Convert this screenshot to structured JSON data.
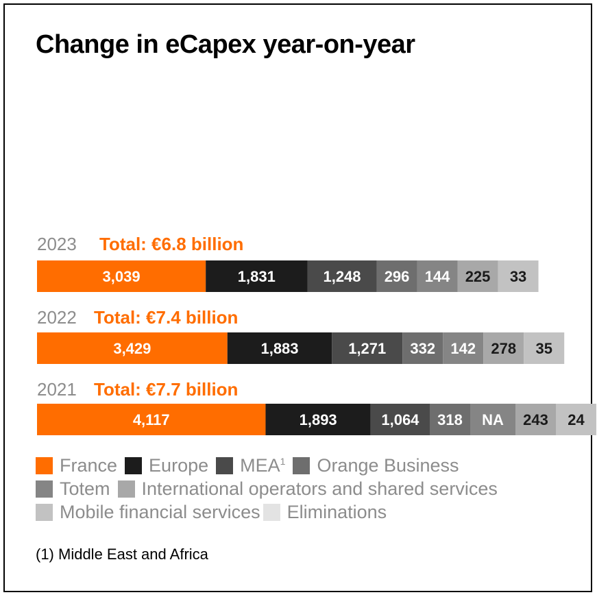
{
  "title": "Change in eCapex year-on-year",
  "chart_data": {
    "type": "bar",
    "orientation": "horizontal-stacked",
    "title": "Change in eCapex year-on-year",
    "rows": [
      {
        "year": "2023",
        "total_label": "Total: €6.8 billion",
        "segments": [
          {
            "series": "France",
            "value": 3039,
            "label": "3,039"
          },
          {
            "series": "Europe",
            "value": 1831,
            "label": "1,831"
          },
          {
            "series": "MEA",
            "value": 1248,
            "label": "1,248"
          },
          {
            "series": "Orange Business",
            "value": 296,
            "label": "296"
          },
          {
            "series": "Totem",
            "value": 144,
            "label": "144"
          },
          {
            "series": "International operators and shared services",
            "value": 225,
            "label": "225"
          },
          {
            "series": "Mobile financial services",
            "value": 33,
            "label": "33"
          }
        ]
      },
      {
        "year": "2022",
        "total_label": "Total: €7.4 billion",
        "segments": [
          {
            "series": "France",
            "value": 3429,
            "label": "3,429"
          },
          {
            "series": "Europe",
            "value": 1883,
            "label": "1,883"
          },
          {
            "series": "MEA",
            "value": 1271,
            "label": "1,271"
          },
          {
            "series": "Orange Business",
            "value": 332,
            "label": "332"
          },
          {
            "series": "Totem",
            "value": 142,
            "label": "142"
          },
          {
            "series": "International operators and shared services",
            "value": 278,
            "label": "278"
          },
          {
            "series": "Mobile financial services",
            "value": 35,
            "label": "35"
          }
        ]
      },
      {
        "year": "2021",
        "total_label": "Total: €7.7 billion",
        "segments": [
          {
            "series": "France",
            "value": 4117,
            "label": "4,117"
          },
          {
            "series": "Europe",
            "value": 1893,
            "label": "1,893"
          },
          {
            "series": "MEA",
            "value": 1064,
            "label": "1,064"
          },
          {
            "series": "Orange Business",
            "value": 318,
            "label": "318"
          },
          {
            "series": "Totem",
            "value": null,
            "label": "NA"
          },
          {
            "series": "International operators and shared services",
            "value": 243,
            "label": "243"
          },
          {
            "series": "Mobile financial services",
            "value": 24,
            "label": "24"
          }
        ]
      }
    ],
    "legend": [
      {
        "name": "France",
        "color": "#ff6d00",
        "superscript": ""
      },
      {
        "name": "Europe",
        "color": "#1c1c1c",
        "superscript": ""
      },
      {
        "name": "MEA",
        "color": "#4a4a4a",
        "superscript": "1"
      },
      {
        "name": "Orange Business",
        "color": "#6e6e6e",
        "superscript": ""
      },
      {
        "name": "Totem",
        "color": "#858585",
        "superscript": ""
      },
      {
        "name": "International operators and shared services",
        "color": "#a8a8a8",
        "superscript": ""
      },
      {
        "name": "Mobile financial services",
        "color": "#c2c2c2",
        "superscript": ""
      },
      {
        "name": "Eliminations",
        "color": "#e3e3e3",
        "superscript": ""
      }
    ],
    "label_colors": {
      "light": "#ffffff",
      "dark": "#1a1a1a"
    },
    "year_color": "#8c8c8c",
    "total_color": "#ff6d00"
  },
  "footnote": "(1) Middle East and Africa"
}
